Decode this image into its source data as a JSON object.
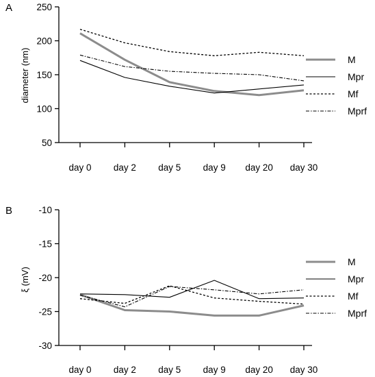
{
  "chart_data": [
    {
      "type": "line",
      "panel_label": "A",
      "ylabel": "diameter (nm)",
      "xlabel": "",
      "ylim": [
        50,
        250
      ],
      "yticks": [
        "50",
        "100",
        "150",
        "200",
        "250"
      ],
      "categories": [
        "day 0",
        "day 2",
        "day 5",
        "day 9",
        "day 20",
        "day 30"
      ],
      "legend_position": "right",
      "grid": false,
      "series": [
        {
          "name": "M",
          "values": [
            211,
            172,
            139,
            126,
            120,
            127
          ],
          "color": "#8c8c8c",
          "style": "thick-solid"
        },
        {
          "name": "Mpr",
          "values": [
            171,
            146,
            133,
            123,
            129,
            135
          ],
          "color": "#000000",
          "style": "solid"
        },
        {
          "name": "Mf",
          "values": [
            217,
            197,
            184,
            178,
            183,
            178
          ],
          "color": "#000000",
          "style": "dashed"
        },
        {
          "name": "Mprf",
          "values": [
            179,
            162,
            155,
            152,
            150,
            141
          ],
          "color": "#000000",
          "style": "dash-dot"
        }
      ]
    },
    {
      "type": "line",
      "panel_label": "B",
      "ylabel": "ξ (mV)",
      "xlabel": "",
      "ylim": [
        -30,
        -10
      ],
      "yticks": [
        "-30",
        "-25",
        "-20",
        "-15",
        "-10"
      ],
      "categories": [
        "day 0",
        "day 2",
        "day 5",
        "day 9",
        "day 20",
        "day 30"
      ],
      "legend_position": "right",
      "grid": false,
      "series": [
        {
          "name": "M",
          "values": [
            -22.5,
            -24.8,
            -25.0,
            -25.6,
            -25.6,
            -24.1
          ],
          "color": "#8c8c8c",
          "style": "thick-solid"
        },
        {
          "name": "Mpr",
          "values": [
            -22.4,
            -22.5,
            -22.9,
            -20.4,
            -23.1,
            -23.0
          ],
          "color": "#000000",
          "style": "solid"
        },
        {
          "name": "Mf",
          "values": [
            -23.1,
            -23.8,
            -21.2,
            -23.0,
            -23.5,
            -23.9
          ],
          "color": "#000000",
          "style": "dashed"
        },
        {
          "name": "Mprf",
          "values": [
            -22.6,
            -24.3,
            -21.3,
            -21.8,
            -22.4,
            -21.8
          ],
          "color": "#000000",
          "style": "dash-dot"
        }
      ]
    }
  ]
}
